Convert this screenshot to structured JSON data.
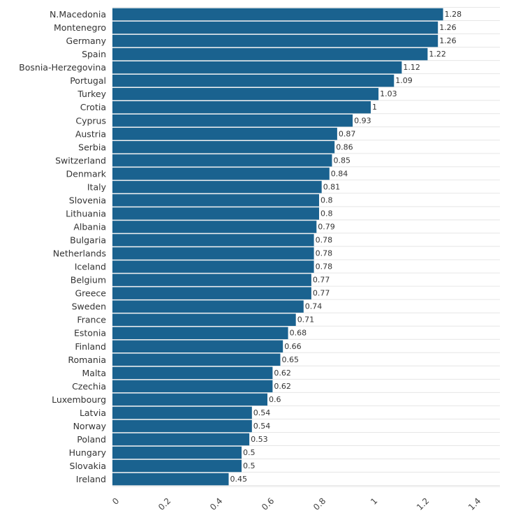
{
  "chart_data": {
    "type": "bar",
    "orientation": "horizontal",
    "categories": [
      "N.Macedonia",
      "Montenegro",
      "Germany",
      "Spain",
      "Bosnia-Herzegovina",
      "Portugal",
      "Turkey",
      "Crotia",
      "Cyprus",
      "Austria",
      "Serbia",
      "Switzerland",
      "Denmark",
      "Italy",
      "Slovenia",
      "Lithuania",
      "Albania",
      "Bulgaria",
      "Netherlands",
      "Iceland",
      "Belgium",
      "Greece",
      "Sweden",
      "France",
      "Estonia",
      "Finland",
      "Romania",
      "Malta",
      "Czechia",
      "Luxembourg",
      "Latvia",
      "Norway",
      "Poland",
      "Hungary",
      "Slovakia",
      "Ireland"
    ],
    "values": [
      1.28,
      1.26,
      1.26,
      1.22,
      1.12,
      1.09,
      1.03,
      1,
      0.93,
      0.87,
      0.86,
      0.85,
      0.84,
      0.81,
      0.8,
      0.8,
      0.79,
      0.78,
      0.78,
      0.78,
      0.77,
      0.77,
      0.74,
      0.71,
      0.68,
      0.66,
      0.65,
      0.62,
      0.62,
      0.6,
      0.54,
      0.54,
      0.53,
      0.5,
      0.5,
      0.45
    ],
    "value_labels": [
      "1.28",
      "1.26",
      "1.26",
      "1.22",
      "1.12",
      "1.09",
      "1.03",
      "1",
      "0.93",
      "0.87",
      "0.86",
      "0.85",
      "0.84",
      "0.81",
      "0.8",
      "0.8",
      "0.79",
      "0.78",
      "0.78",
      "0.78",
      "0.77",
      "0.77",
      "0.74",
      "0.71",
      "0.68",
      "0.66",
      "0.65",
      "0.62",
      "0.62",
      "0.6",
      "0.54",
      "0.54",
      "0.53",
      "0.5",
      "0.5",
      "0.45"
    ],
    "xticks": [
      "0",
      "0.2",
      "0.4",
      "0.6",
      "0.8",
      "1",
      "1.2",
      "1.4"
    ],
    "xlim": [
      0,
      1.5
    ],
    "grid": true,
    "bar_color": "#1a628f",
    "title": "",
    "xlabel": "",
    "ylabel": ""
  }
}
